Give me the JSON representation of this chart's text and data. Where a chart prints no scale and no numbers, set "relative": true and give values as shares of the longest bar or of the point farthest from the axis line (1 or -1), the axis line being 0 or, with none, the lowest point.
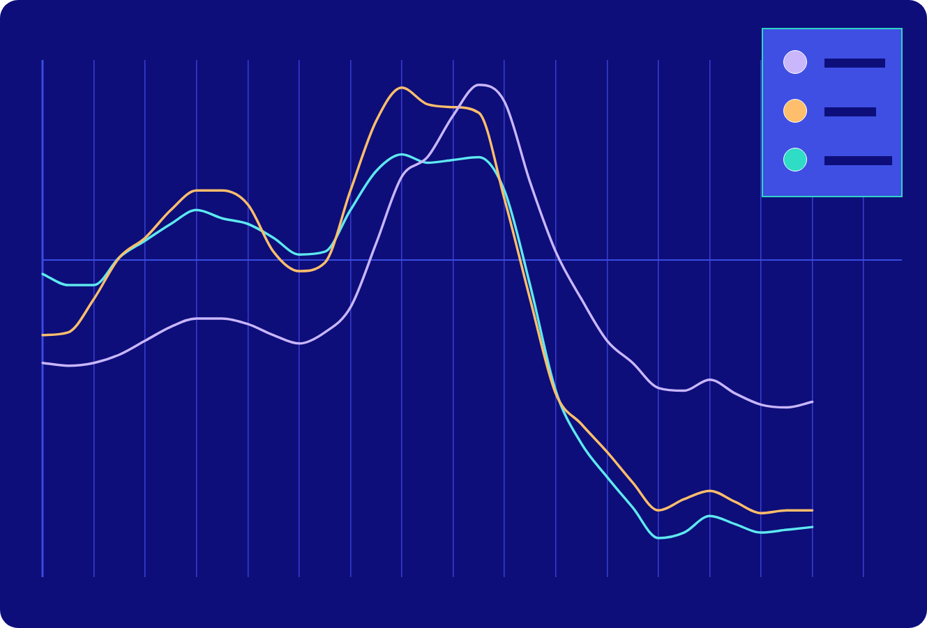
{
  "chart_data": {
    "type": "line",
    "relative": true,
    "ref_lines": [
      {
        "axis": "y",
        "value": 0,
        "color": "#3a4be0"
      }
    ],
    "grid": "x",
    "tick_labels": false,
    "legend": false,
    "marker": "none",
    "line_style": "solid",
    "categories": [
      null,
      null,
      null,
      null,
      null,
      null,
      null,
      null,
      null,
      null,
      null,
      null,
      null,
      null,
      null,
      null,
      null,
      null,
      null,
      null,
      null,
      null,
      null,
      null,
      null,
      null,
      null,
      null,
      null,
      null,
      null,
      null,
      null,
      null
    ],
    "series": [
      {
        "color": "#c9b6fb",
        "values": [
          -0.37,
          -0.38,
          -0.37,
          -0.34,
          -0.29,
          -0.24,
          -0.21,
          -0.21,
          -0.23,
          -0.27,
          -0.3,
          -0.26,
          -0.17,
          0.06,
          0.3,
          0.37,
          0.52,
          0.63,
          0.57,
          0.28,
          0.03,
          -0.14,
          -0.29,
          -0.37,
          -0.46,
          -0.47,
          -0.43,
          -0.48,
          -0.52,
          -0.53,
          -0.51,
          null,
          null,
          null
        ]
      },
      {
        "color": "#ffbe6b",
        "values": [
          -0.27,
          -0.26,
          -0.14,
          0.01,
          0.08,
          0.18,
          0.25,
          0.25,
          0.2,
          0.03,
          -0.04,
          -0.01,
          0.25,
          0.5,
          0.62,
          0.56,
          0.55,
          0.53,
          0.22,
          -0.14,
          -0.48,
          -0.59,
          -0.69,
          -0.8,
          -0.9,
          -0.86,
          -0.83,
          -0.87,
          -0.91,
          -0.9,
          -0.9,
          null,
          null,
          null
        ]
      },
      {
        "color": "#5ee8f0",
        "values": [
          -0.05,
          -0.09,
          -0.09,
          0.01,
          0.07,
          0.13,
          0.18,
          0.15,
          0.13,
          0.08,
          0.02,
          0.03,
          0.18,
          0.32,
          0.38,
          0.35,
          0.36,
          0.37,
          0.25,
          -0.09,
          -0.47,
          -0.66,
          -0.78,
          -0.89,
          -1,
          -0.98,
          -0.92,
          -0.95,
          -0.98,
          -0.97,
          -0.96,
          null,
          null,
          null
        ]
      }
    ]
  }
}
